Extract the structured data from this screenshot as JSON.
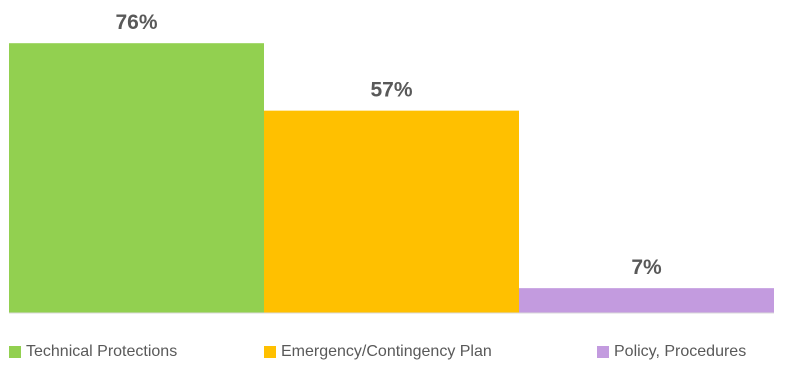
{
  "chart_data": {
    "type": "bar",
    "categories": [
      "Technical Protections",
      "Emergency/Contingency Plan",
      "Policy, Procedures"
    ],
    "values": [
      76,
      57,
      7
    ],
    "value_labels": [
      "76%",
      "57%",
      "7%"
    ],
    "colors": [
      "#92D050",
      "#FFC000",
      "#C39BDF"
    ],
    "ylim": [
      0,
      100
    ],
    "grid": false,
    "legend_position": "bottom",
    "title": "",
    "xlabel": "",
    "ylabel": ""
  }
}
